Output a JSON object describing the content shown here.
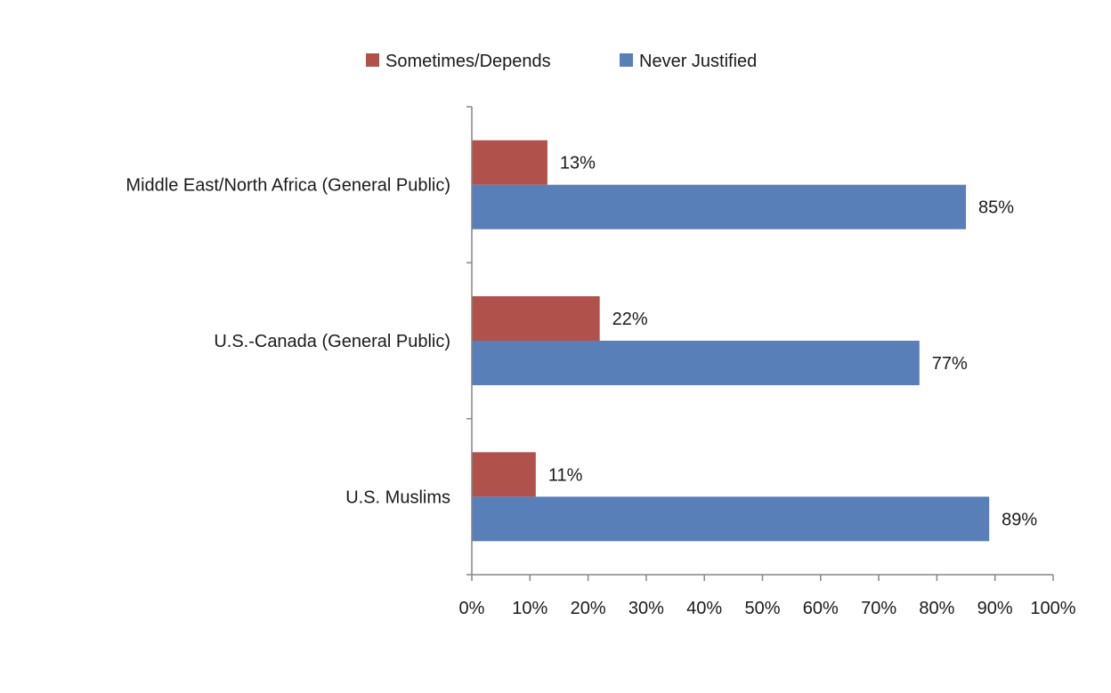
{
  "chart_data": {
    "type": "bar",
    "orientation": "horizontal",
    "title": "",
    "xlabel": "",
    "ylabel": "",
    "xlim": [
      0,
      100
    ],
    "x_ticks": [
      "0%",
      "10%",
      "20%",
      "30%",
      "40%",
      "50%",
      "60%",
      "70%",
      "80%",
      "90%",
      "100%"
    ],
    "categories": [
      "Middle East/North Africa (General Public)",
      "U.S.-Canada (General Public)",
      "U.S. Muslims"
    ],
    "series": [
      {
        "name": "Sometimes/Depends",
        "color": "#B0524B",
        "values": [
          13,
          22,
          11
        ],
        "labels": [
          "13%",
          "22%",
          "11%"
        ]
      },
      {
        "name": "Never Justified",
        "color": "#587FB8",
        "values": [
          85,
          77,
          89
        ],
        "labels": [
          "85%",
          "77%",
          "89%"
        ]
      }
    ],
    "legend_position": "top",
    "grid": false
  }
}
